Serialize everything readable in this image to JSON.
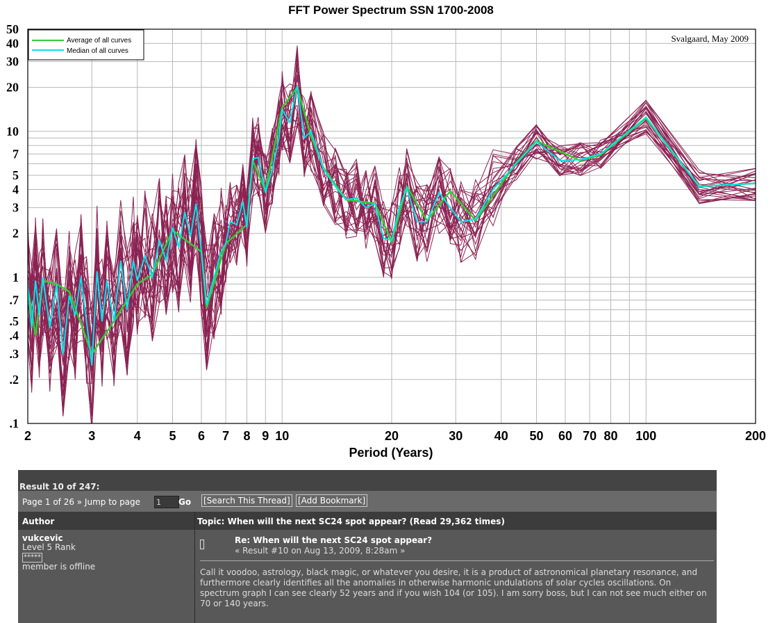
{
  "chart_data": {
    "type": "line",
    "title": "FFT Power Spectrum SSN 1700-2008",
    "xlabel": "Period (Years)",
    "ylabel": "",
    "x_scale": "log",
    "y_scale": "log",
    "xlim": [
      2,
      200
    ],
    "ylim": [
      0.1,
      50
    ],
    "credit": "Svalgaard, May 2009",
    "x_ticks": [
      "2",
      "3",
      "4",
      "5",
      "6",
      "7",
      "8",
      "9",
      "10",
      "20",
      "30",
      "40",
      "50",
      "60",
      "70",
      "80",
      "100",
      "200"
    ],
    "x_tick_values": [
      2,
      3,
      4,
      5,
      6,
      7,
      8,
      9,
      10,
      20,
      30,
      40,
      50,
      60,
      70,
      80,
      100,
      200
    ],
    "y_ticks": [
      ".1",
      ".2",
      ".3",
      ".4",
      ".5",
      ".7",
      "1",
      "2",
      "3",
      "4",
      "5",
      "7",
      "10",
      "20",
      "30",
      "40",
      "50"
    ],
    "y_tick_values": [
      0.1,
      0.2,
      0.3,
      0.4,
      0.5,
      0.7,
      1,
      2,
      3,
      4,
      5,
      7,
      10,
      20,
      30,
      40,
      50
    ],
    "legend": {
      "position": "top-left",
      "entries": [
        "Average of all curves",
        "Median of all curves"
      ]
    },
    "colors": {
      "average": "#33cc33",
      "median": "#00e5ee",
      "curves": "#8b2252"
    },
    "series": [
      {
        "name": "Median of all curves",
        "x": [
          2,
          2.05,
          2.1,
          2.15,
          2.2,
          2.3,
          2.4,
          2.5,
          2.6,
          2.7,
          2.8,
          2.9,
          3.0,
          3.1,
          3.2,
          3.3,
          3.45,
          3.6,
          3.75,
          3.9,
          4.0,
          4.2,
          4.4,
          4.6,
          4.8,
          5.0,
          5.2,
          5.4,
          5.6,
          5.8,
          6.0,
          6.2,
          6.5,
          6.8,
          7.0,
          7.2,
          7.5,
          7.8,
          8.0,
          8.3,
          8.6,
          9.0,
          9.4,
          9.8,
          10.0,
          10.5,
          11.0,
          11.5,
          12.0,
          13.0,
          14.0,
          15.0,
          16.0,
          17.0,
          18.0,
          19.0,
          20.0,
          21.0,
          22.0,
          23.5,
          25.0,
          27.0,
          29.0,
          31.0,
          34.0,
          38.0,
          44.0,
          50.0,
          58.0,
          66.0,
          75.0,
          100.0,
          140.0,
          200.0
        ],
        "y": [
          0.9,
          0.45,
          0.95,
          0.55,
          1.0,
          0.45,
          0.9,
          0.3,
          0.75,
          0.55,
          1.0,
          0.5,
          0.25,
          1.1,
          0.5,
          0.95,
          0.5,
          1.3,
          0.6,
          1.3,
          0.95,
          1.4,
          1.0,
          1.8,
          1.3,
          2.2,
          1.6,
          2.8,
          1.9,
          3.2,
          1.5,
          0.65,
          1.0,
          1.5,
          1.7,
          2.4,
          2.3,
          3.3,
          2.2,
          6.5,
          6.6,
          3.8,
          5.5,
          9.0,
          14.0,
          11.5,
          20.5,
          9.0,
          10.0,
          5.5,
          4.2,
          3.4,
          3.5,
          3.0,
          3.2,
          1.85,
          1.8,
          3.0,
          4.1,
          2.4,
          2.4,
          3.8,
          3.0,
          2.4,
          2.5,
          4.0,
          6.0,
          8.5,
          6.3,
          6.4,
          7.0,
          12.5,
          4.2,
          4.4
        ]
      },
      {
        "name": "Average of all curves",
        "x": [
          2,
          2.1,
          2.2,
          2.4,
          2.6,
          3.0,
          3.45,
          4.0,
          4.4,
          5.0,
          5.6,
          6.0,
          6.2,
          7.0,
          8.0,
          8.3,
          9.0,
          10.0,
          11.0,
          12.0,
          13.0,
          15.0,
          18.0,
          20.0,
          22.0,
          25.0,
          29.0,
          34.0,
          44.0,
          50.0,
          66.0,
          75.0,
          100.0,
          140.0,
          200.0
        ],
        "y": [
          0.85,
          0.4,
          0.95,
          0.9,
          0.8,
          0.3,
          0.5,
          0.9,
          1.05,
          2.1,
          1.7,
          1.5,
          0.62,
          1.7,
          2.3,
          6.3,
          3.9,
          14.5,
          20.0,
          9.3,
          5.6,
          3.4,
          3.2,
          1.75,
          4.2,
          2.45,
          3.9,
          2.45,
          6.1,
          8.6,
          6.3,
          6.9,
          12.3,
          4.2,
          4.4
        ]
      }
    ]
  },
  "forum": {
    "result": "Result 10 of 247:",
    "page_info": "Page 1 of 26 » Jump to page",
    "jump_value": "1",
    "go": "Go",
    "search_thread": "[Search This Thread]",
    "add_bookmark": "[Add Bookmark]",
    "author_header": "Author",
    "topic_header": "Topic: When will the next SC24 spot appear? (Read 29,362 times)",
    "user": {
      "name": "vukcevic",
      "rank": "Level 5 Rank",
      "stars": "*****",
      "status": "member is offline"
    },
    "post": {
      "title": "Re: When will the next SC24 spot appear?",
      "meta": "« Result #10 on Aug 13, 2009, 8:28am »",
      "body": "Call it voodoo, astrology, black magic, or whatever you desire, it is a product of astronomical planetary resonance, and furthermore clearly identifies all the anomalies in otherwise harmonic undulations of solar cycles oscillations. On spectrum graph I can see clearly 52 years and if you wish 104 (or 105). I am sorry boss, but I can not see much either on 70 or 140 years."
    }
  }
}
